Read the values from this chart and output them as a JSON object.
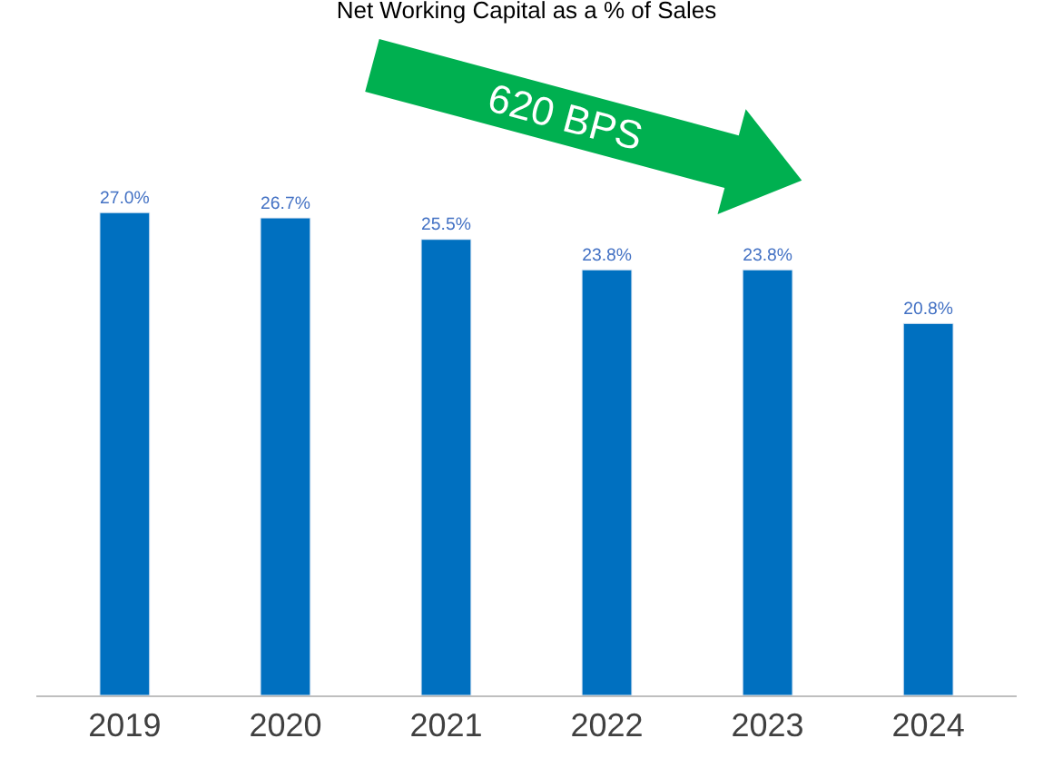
{
  "chart_data": {
    "type": "bar",
    "title": "Net Working Capital as a % of Sales",
    "categories": [
      "2019",
      "2020",
      "2021",
      "2022",
      "2023",
      "2024"
    ],
    "values": [
      27.0,
      26.7,
      25.5,
      23.8,
      23.8,
      20.8
    ],
    "value_labels": [
      "27.0%",
      "26.7%",
      "25.5%",
      "23.8%",
      "23.8%",
      "20.8%"
    ],
    "color": "#0070c0",
    "tick_labels": "x",
    "annotations": [
      "620 BPS"
    ]
  }
}
